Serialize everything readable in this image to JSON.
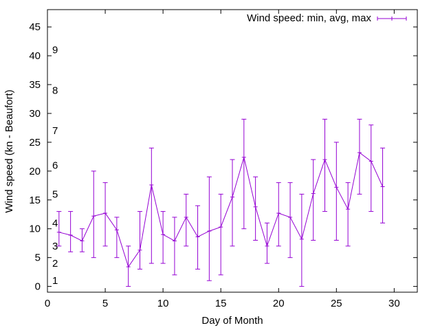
{
  "chart_data": {
    "type": "line",
    "subtype": "errorbar",
    "title": "",
    "xlabel": "Day of Month",
    "ylabel": "Wind speed (kn - Beaufort)",
    "xlim": [
      0,
      32
    ],
    "ylim": [
      -1,
      48
    ],
    "xticks": [
      "0",
      "5",
      "10",
      "15",
      "20",
      "25",
      "30"
    ],
    "yticks": [
      "0",
      "5",
      "10",
      "15",
      "20",
      "25",
      "30",
      "35",
      "40",
      "45"
    ],
    "grid": false,
    "legend_position": "top-right",
    "color": "#9400d3",
    "series": [
      {
        "name": "Wind speed: min, avg, max",
        "x": [
          1,
          2,
          3,
          4,
          5,
          6,
          7,
          8,
          9,
          10,
          11,
          12,
          13,
          14,
          15,
          16,
          17,
          18,
          19,
          20,
          21,
          22,
          23,
          24,
          25,
          26,
          27,
          28,
          29
        ],
        "avg": [
          9.4,
          8.9,
          7.9,
          12.2,
          12.7,
          9.8,
          3.4,
          6.3,
          17.6,
          9.0,
          7.9,
          12.0,
          8.6,
          9.6,
          10.3,
          15.5,
          22.4,
          13.8,
          7.0,
          12.7,
          12.0,
          8.2,
          16.1,
          22.0,
          17.2,
          13.4,
          23.2,
          21.7,
          17.3
        ],
        "min": [
          7,
          6,
          6,
          5,
          7,
          5,
          0,
          3,
          4,
          4,
          2,
          7,
          3,
          1,
          2,
          7,
          10,
          8,
          4,
          7,
          5,
          0,
          8,
          13,
          8,
          7,
          16,
          13,
          11
        ],
        "max": [
          13,
          13,
          10,
          20,
          18,
          12,
          7,
          13,
          24,
          13,
          12,
          16,
          14,
          19,
          16,
          22,
          29,
          19,
          11,
          18,
          18,
          16,
          22,
          29,
          25,
          18,
          29,
          28,
          24
        ]
      }
    ],
    "annotations": [
      {
        "text": "1",
        "y": 1
      },
      {
        "text": "2",
        "y": 4
      },
      {
        "text": "3",
        "y": 7
      },
      {
        "text": "4",
        "y": 11
      },
      {
        "text": "5",
        "y": 16
      },
      {
        "text": "6",
        "y": 21
      },
      {
        "text": "7",
        "y": 27
      },
      {
        "text": "8",
        "y": 34
      },
      {
        "text": "9",
        "y": 41
      }
    ]
  }
}
